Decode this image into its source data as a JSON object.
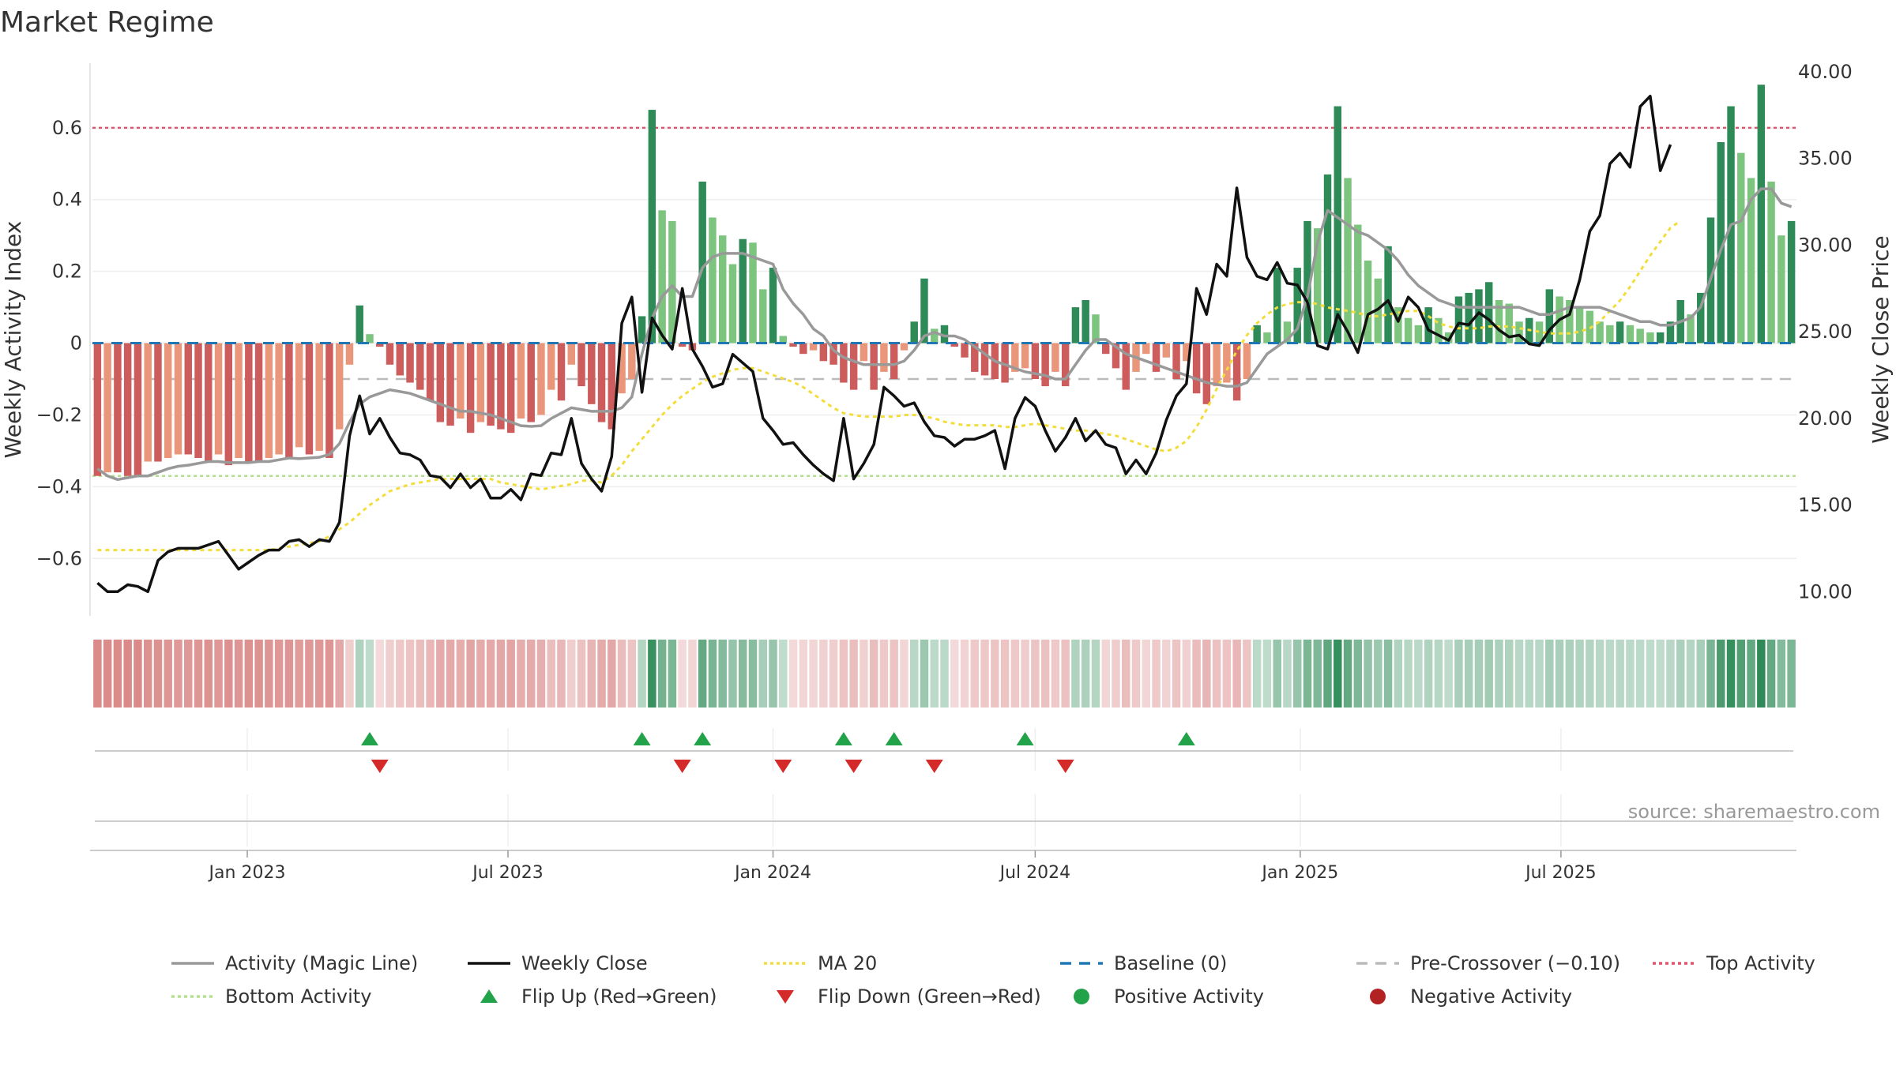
{
  "title": "Market Regime",
  "source": "source: sharemaestro.com",
  "colors": {
    "pos_dark": "#2e8b57",
    "pos_light": "#7dc47f",
    "neg_dark": "#cd5c5c",
    "neg_light": "#e9967a",
    "magic": "#999999",
    "close": "#111111",
    "ma": "#f2dd3c",
    "baseline": "#1f77b4",
    "pre": "#bbbbbb",
    "top": "#e0566e",
    "bottom": "#b5e08a",
    "flip_up": "#22a34a",
    "flip_down": "#d42a2a",
    "pos_activity": "#22a34a",
    "neg_activity": "#b22222"
  },
  "chart_data": {
    "type": "bar",
    "title": "Market Regime",
    "x_start": "2022-09-19",
    "interval_days": 7,
    "x_ticks": [
      "Jan 2023",
      "Jul 2023",
      "Jan 2024",
      "Jul 2024",
      "Jan 2025",
      "Jul 2025"
    ],
    "y_left": {
      "label": "Weekly Activity Index",
      "lim": [
        -0.76,
        0.78
      ],
      "ticks": [
        "0.6",
        "0.4",
        "0.2",
        "0",
        "−0.2",
        "−0.4",
        "−0.6"
      ]
    },
    "y_right": {
      "label": "Weekly Close Price",
      "lim": [
        8.6,
        40.5
      ],
      "ticks": [
        "40.00",
        "35.00",
        "30.00",
        "25.00",
        "20.00",
        "15.00",
        "10.00"
      ]
    },
    "reference_lines": {
      "baseline": 0,
      "pre_crossover": -0.1,
      "top_activity": 0.6,
      "bottom_activity": -0.37
    },
    "activity": [
      -0.37,
      -0.36,
      -0.36,
      -0.37,
      -0.37,
      -0.33,
      -0.33,
      -0.32,
      -0.31,
      -0.31,
      -0.32,
      -0.33,
      -0.31,
      -0.34,
      -0.32,
      -0.33,
      -0.33,
      -0.32,
      -0.31,
      -0.32,
      -0.29,
      -0.31,
      -0.3,
      -0.32,
      -0.24,
      -0.06,
      0.105,
      0.025,
      -0.01,
      -0.06,
      -0.09,
      -0.11,
      -0.13,
      -0.16,
      -0.22,
      -0.23,
      -0.21,
      -0.25,
      -0.22,
      -0.23,
      -0.24,
      -0.25,
      -0.21,
      -0.22,
      -0.2,
      -0.13,
      -0.16,
      -0.06,
      -0.12,
      -0.17,
      -0.22,
      -0.24,
      -0.14,
      -0.1,
      0.075,
      0.65,
      0.37,
      0.34,
      -0.01,
      -0.02,
      0.45,
      0.35,
      0.3,
      0.22,
      0.29,
      0.28,
      0.15,
      0.21,
      0.02,
      -0.01,
      -0.03,
      -0.02,
      -0.05,
      -0.06,
      -0.11,
      -0.13,
      -0.05,
      -0.13,
      -0.08,
      -0.1,
      -0.02,
      0.06,
      0.18,
      0.04,
      0.05,
      -0.01,
      -0.04,
      -0.08,
      -0.09,
      -0.1,
      -0.11,
      -0.08,
      -0.07,
      -0.1,
      -0.12,
      -0.08,
      -0.12,
      0.1,
      0.12,
      0.08,
      -0.03,
      -0.07,
      -0.13,
      -0.08,
      -0.03,
      -0.08,
      -0.04,
      -0.1,
      -0.05,
      -0.14,
      -0.17,
      -0.12,
      -0.11,
      -0.16,
      -0.1,
      0.05,
      0.03,
      0.21,
      0.06,
      0.21,
      0.34,
      0.32,
      0.47,
      0.66,
      0.46,
      0.33,
      0.23,
      0.18,
      0.27,
      0.1,
      0.07,
      0.05,
      0.1,
      0.07,
      0.03,
      0.13,
      0.14,
      0.15,
      0.17,
      0.12,
      0.11,
      0.06,
      0.07,
      0.06,
      0.15,
      0.13,
      0.12,
      0.1,
      0.09,
      0.06,
      0.05,
      0.06,
      0.05,
      0.04,
      0.03,
      0.03,
      0.06,
      0.12,
      0.08,
      0.14,
      0.35,
      0.56,
      0.66,
      0.53,
      0.46,
      0.72,
      0.45,
      0.3,
      0.34
    ],
    "magic_line": [
      -0.35,
      -0.37,
      -0.38,
      -0.375,
      -0.37,
      -0.37,
      -0.36,
      -0.35,
      -0.343,
      -0.34,
      -0.335,
      -0.33,
      -0.33,
      -0.333,
      -0.333,
      -0.333,
      -0.33,
      -0.33,
      -0.325,
      -0.32,
      -0.322,
      -0.32,
      -0.318,
      -0.31,
      -0.28,
      -0.22,
      -0.17,
      -0.15,
      -0.14,
      -0.13,
      -0.135,
      -0.14,
      -0.15,
      -0.16,
      -0.17,
      -0.18,
      -0.19,
      -0.19,
      -0.195,
      -0.2,
      -0.21,
      -0.22,
      -0.23,
      -0.232,
      -0.23,
      -0.21,
      -0.195,
      -0.18,
      -0.185,
      -0.19,
      -0.19,
      -0.19,
      -0.18,
      -0.15,
      -0.03,
      0.07,
      0.13,
      0.16,
      0.13,
      0.13,
      0.21,
      0.24,
      0.25,
      0.25,
      0.25,
      0.24,
      0.23,
      0.22,
      0.15,
      0.11,
      0.08,
      0.04,
      0.02,
      -0.02,
      -0.04,
      -0.05,
      -0.06,
      -0.06,
      -0.06,
      -0.06,
      -0.05,
      -0.02,
      0.02,
      0.03,
      0.02,
      0.02,
      0.01,
      -0.01,
      -0.03,
      -0.05,
      -0.06,
      -0.07,
      -0.08,
      -0.085,
      -0.09,
      -0.1,
      -0.1,
      -0.06,
      -0.02,
      0.01,
      0.01,
      -0.01,
      -0.03,
      -0.04,
      -0.05,
      -0.06,
      -0.07,
      -0.08,
      -0.09,
      -0.1,
      -0.11,
      -0.115,
      -0.12,
      -0.12,
      -0.11,
      -0.07,
      -0.03,
      -0.01,
      0.01,
      0.04,
      0.13,
      0.28,
      0.37,
      0.35,
      0.33,
      0.31,
      0.3,
      0.28,
      0.26,
      0.23,
      0.19,
      0.16,
      0.14,
      0.12,
      0.11,
      0.1,
      0.1,
      0.1,
      0.1,
      0.1,
      0.1,
      0.1,
      0.09,
      0.08,
      0.08,
      0.09,
      0.1,
      0.1,
      0.1,
      0.1,
      0.09,
      0.08,
      0.07,
      0.06,
      0.06,
      0.05,
      0.05,
      0.06,
      0.07,
      0.1,
      0.18,
      0.26,
      0.33,
      0.34,
      0.4,
      0.43,
      0.43,
      0.39,
      0.38
    ],
    "weekly_close": [
      10.5,
      10.0,
      10.0,
      10.4,
      10.3,
      10.0,
      11.8,
      12.3,
      12.5,
      12.5,
      12.5,
      12.7,
      12.9,
      12.1,
      11.3,
      11.7,
      12.1,
      12.4,
      12.4,
      12.9,
      13.0,
      12.6,
      13.0,
      12.9,
      14.0,
      19.0,
      21.3,
      19.1,
      20.0,
      18.9,
      18.0,
      17.9,
      17.6,
      16.7,
      16.6,
      16.0,
      16.8,
      16.0,
      16.5,
      15.4,
      15.4,
      15.9,
      15.3,
      16.8,
      16.7,
      18.0,
      17.9,
      20.0,
      17.4,
      16.5,
      15.8,
      17.8,
      25.5,
      27.0,
      21.5,
      25.8,
      24.8,
      24.0,
      27.5,
      24.0,
      23.0,
      21.8,
      22.0,
      23.7,
      23.2,
      22.7,
      20.0,
      19.3,
      18.5,
      18.6,
      17.9,
      17.3,
      16.8,
      16.4,
      20.0,
      16.5,
      17.4,
      18.5,
      21.8,
      21.3,
      20.7,
      20.9,
      19.8,
      19.0,
      18.9,
      18.4,
      18.8,
      18.8,
      19.0,
      19.3,
      17.1,
      20.0,
      21.2,
      20.7,
      19.3,
      18.1,
      18.9,
      20.0,
      18.7,
      19.3,
      18.5,
      18.3,
      16.8,
      17.6,
      16.8,
      18.0,
      19.9,
      21.3,
      22.0,
      27.5,
      26.0,
      28.9,
      28.2,
      33.3,
      29.3,
      28.2,
      28.0,
      29.0,
      27.8,
      27.7,
      26.7,
      24.2,
      24.0,
      26.0,
      25.0,
      23.8,
      26.0,
      26.3,
      26.8,
      25.6,
      27.0,
      26.4,
      25.1,
      24.8,
      24.5,
      25.5,
      25.4,
      26.1,
      25.7,
      25.1,
      24.7,
      24.8,
      24.3,
      24.2,
      25.1,
      25.7,
      26.0,
      28.0,
      30.8,
      31.7,
      34.7,
      35.3,
      34.5,
      38.0,
      38.6,
      34.3,
      35.8
    ],
    "ma20": [
      12.4,
      12.4,
      12.4,
      12.4,
      12.4,
      12.4,
      12.4,
      12.4,
      12.4,
      12.4,
      12.4,
      12.4,
      12.4,
      12.4,
      12.4,
      12.4,
      12.4,
      12.4,
      12.5,
      12.6,
      12.7,
      12.8,
      12.9,
      13.2,
      13.6,
      14.0,
      14.5,
      15.0,
      15.4,
      15.8,
      16.0,
      16.2,
      16.3,
      16.4,
      16.5,
      16.5,
      16.5,
      16.5,
      16.5,
      16.5,
      16.3,
      16.2,
      16.1,
      16.0,
      15.9,
      16.0,
      16.1,
      16.2,
      16.4,
      16.4,
      16.3,
      16.7,
      17.3,
      18.1,
      18.8,
      19.5,
      20.2,
      20.8,
      21.3,
      21.7,
      22.1,
      22.4,
      22.6,
      22.8,
      22.9,
      22.9,
      22.7,
      22.5,
      22.3,
      22.1,
      21.8,
      21.4,
      21.0,
      20.6,
      20.3,
      20.2,
      20.1,
      20.1,
      20.1,
      20.1,
      20.2,
      20.2,
      20.1,
      20.0,
      19.8,
      19.7,
      19.6,
      19.6,
      19.6,
      19.6,
      19.5,
      19.5,
      19.6,
      19.7,
      19.6,
      19.5,
      19.4,
      19.3,
      19.3,
      19.2,
      19.1,
      19.0,
      18.8,
      18.6,
      18.4,
      18.2,
      18.1,
      18.3,
      18.7,
      19.5,
      20.5,
      21.7,
      22.8,
      23.9,
      24.8,
      25.5,
      26.0,
      26.4,
      26.6,
      26.7,
      26.7,
      26.6,
      26.4,
      26.3,
      26.2,
      26.1,
      25.9,
      25.9,
      26.0,
      26.1,
      26.2,
      26.2,
      25.9,
      25.5,
      25.3,
      25.2,
      25.2,
      25.2,
      25.3,
      25.3,
      25.3,
      25.2,
      25.1,
      25.0,
      24.9,
      24.9,
      24.9,
      25.0,
      25.2,
      25.6,
      26.2,
      26.8,
      27.6,
      28.5,
      29.4,
      30.2,
      31.0,
      31.4
    ],
    "flips": [
      {
        "week": 27,
        "direction": "up"
      },
      {
        "week": 28,
        "direction": "down"
      },
      {
        "week": 54,
        "direction": "up"
      },
      {
        "week": 58,
        "direction": "down"
      },
      {
        "week": 60,
        "direction": "up"
      },
      {
        "week": 68,
        "direction": "down"
      },
      {
        "week": 74,
        "direction": "up"
      },
      {
        "week": 75,
        "direction": "down"
      },
      {
        "week": 79,
        "direction": "up"
      },
      {
        "week": 83,
        "direction": "down"
      },
      {
        "week": 92,
        "direction": "up"
      },
      {
        "week": 96,
        "direction": "down"
      },
      {
        "week": 108,
        "direction": "up"
      }
    ],
    "legend": [
      {
        "label": "Activity (Magic Line)",
        "kind": "line",
        "color": "#999999",
        "dash": ""
      },
      {
        "label": "Weekly Close",
        "kind": "line",
        "color": "#111111",
        "dash": ""
      },
      {
        "label": "MA 20",
        "kind": "line",
        "color": "#f2dd3c",
        "dash": "4,4"
      },
      {
        "label": "Baseline (0)",
        "kind": "line",
        "color": "#1f77b4",
        "dash": "14,10"
      },
      {
        "label": "Pre-Crossover (−0.10)",
        "kind": "line",
        "color": "#bbbbbb",
        "dash": "14,10"
      },
      {
        "label": "Top Activity",
        "kind": "line",
        "color": "#e0566e",
        "dash": "4,4"
      },
      {
        "label": "Bottom Activity",
        "kind": "line",
        "color": "#b5e08a",
        "dash": "4,4"
      },
      {
        "label": "Flip Up (Red→Green)",
        "kind": "tri-up",
        "color": "#22a34a"
      },
      {
        "label": "Flip Down (Green→Red)",
        "kind": "tri-down",
        "color": "#d42a2a"
      },
      {
        "label": "Positive Activity",
        "kind": "dot",
        "color": "#22a34a"
      },
      {
        "label": "Negative Activity",
        "kind": "dot",
        "color": "#b22222"
      }
    ]
  }
}
